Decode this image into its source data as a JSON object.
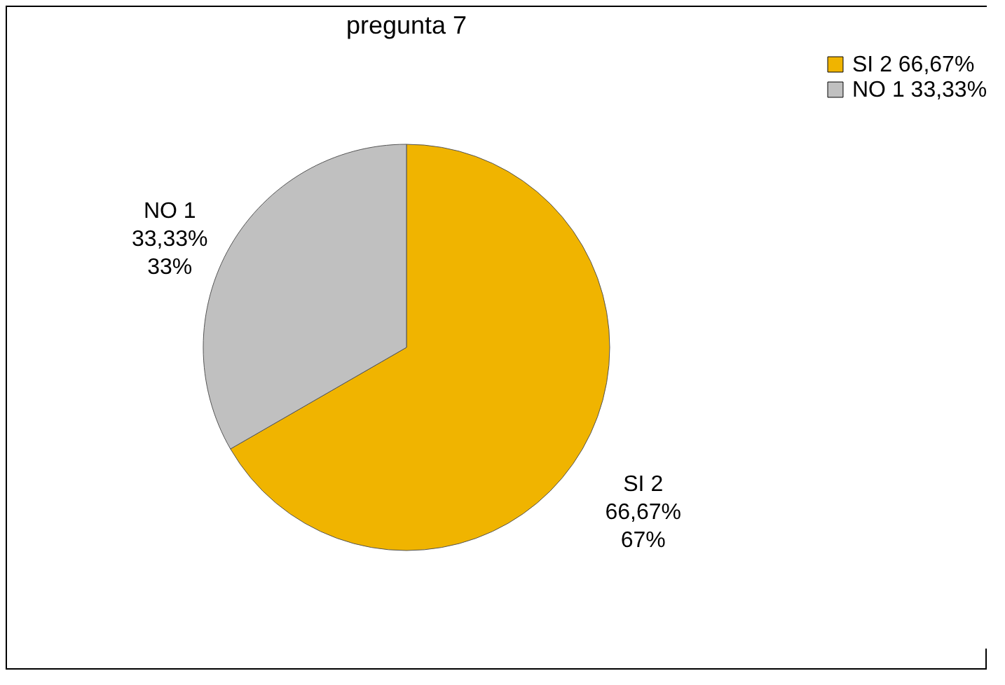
{
  "chart_data": {
    "type": "pie",
    "title": "pregunta 7",
    "categories": [
      "SI 2 66,67%",
      "NO 1 33,33%"
    ],
    "values": [
      66.67,
      33.33
    ],
    "colors": [
      "#f0b400",
      "#c0c0c0"
    ],
    "value_labels": [
      "SI 2\n66,67%\n67%",
      "NO 1\n33,33%\n33%"
    ],
    "legend": "right"
  }
}
